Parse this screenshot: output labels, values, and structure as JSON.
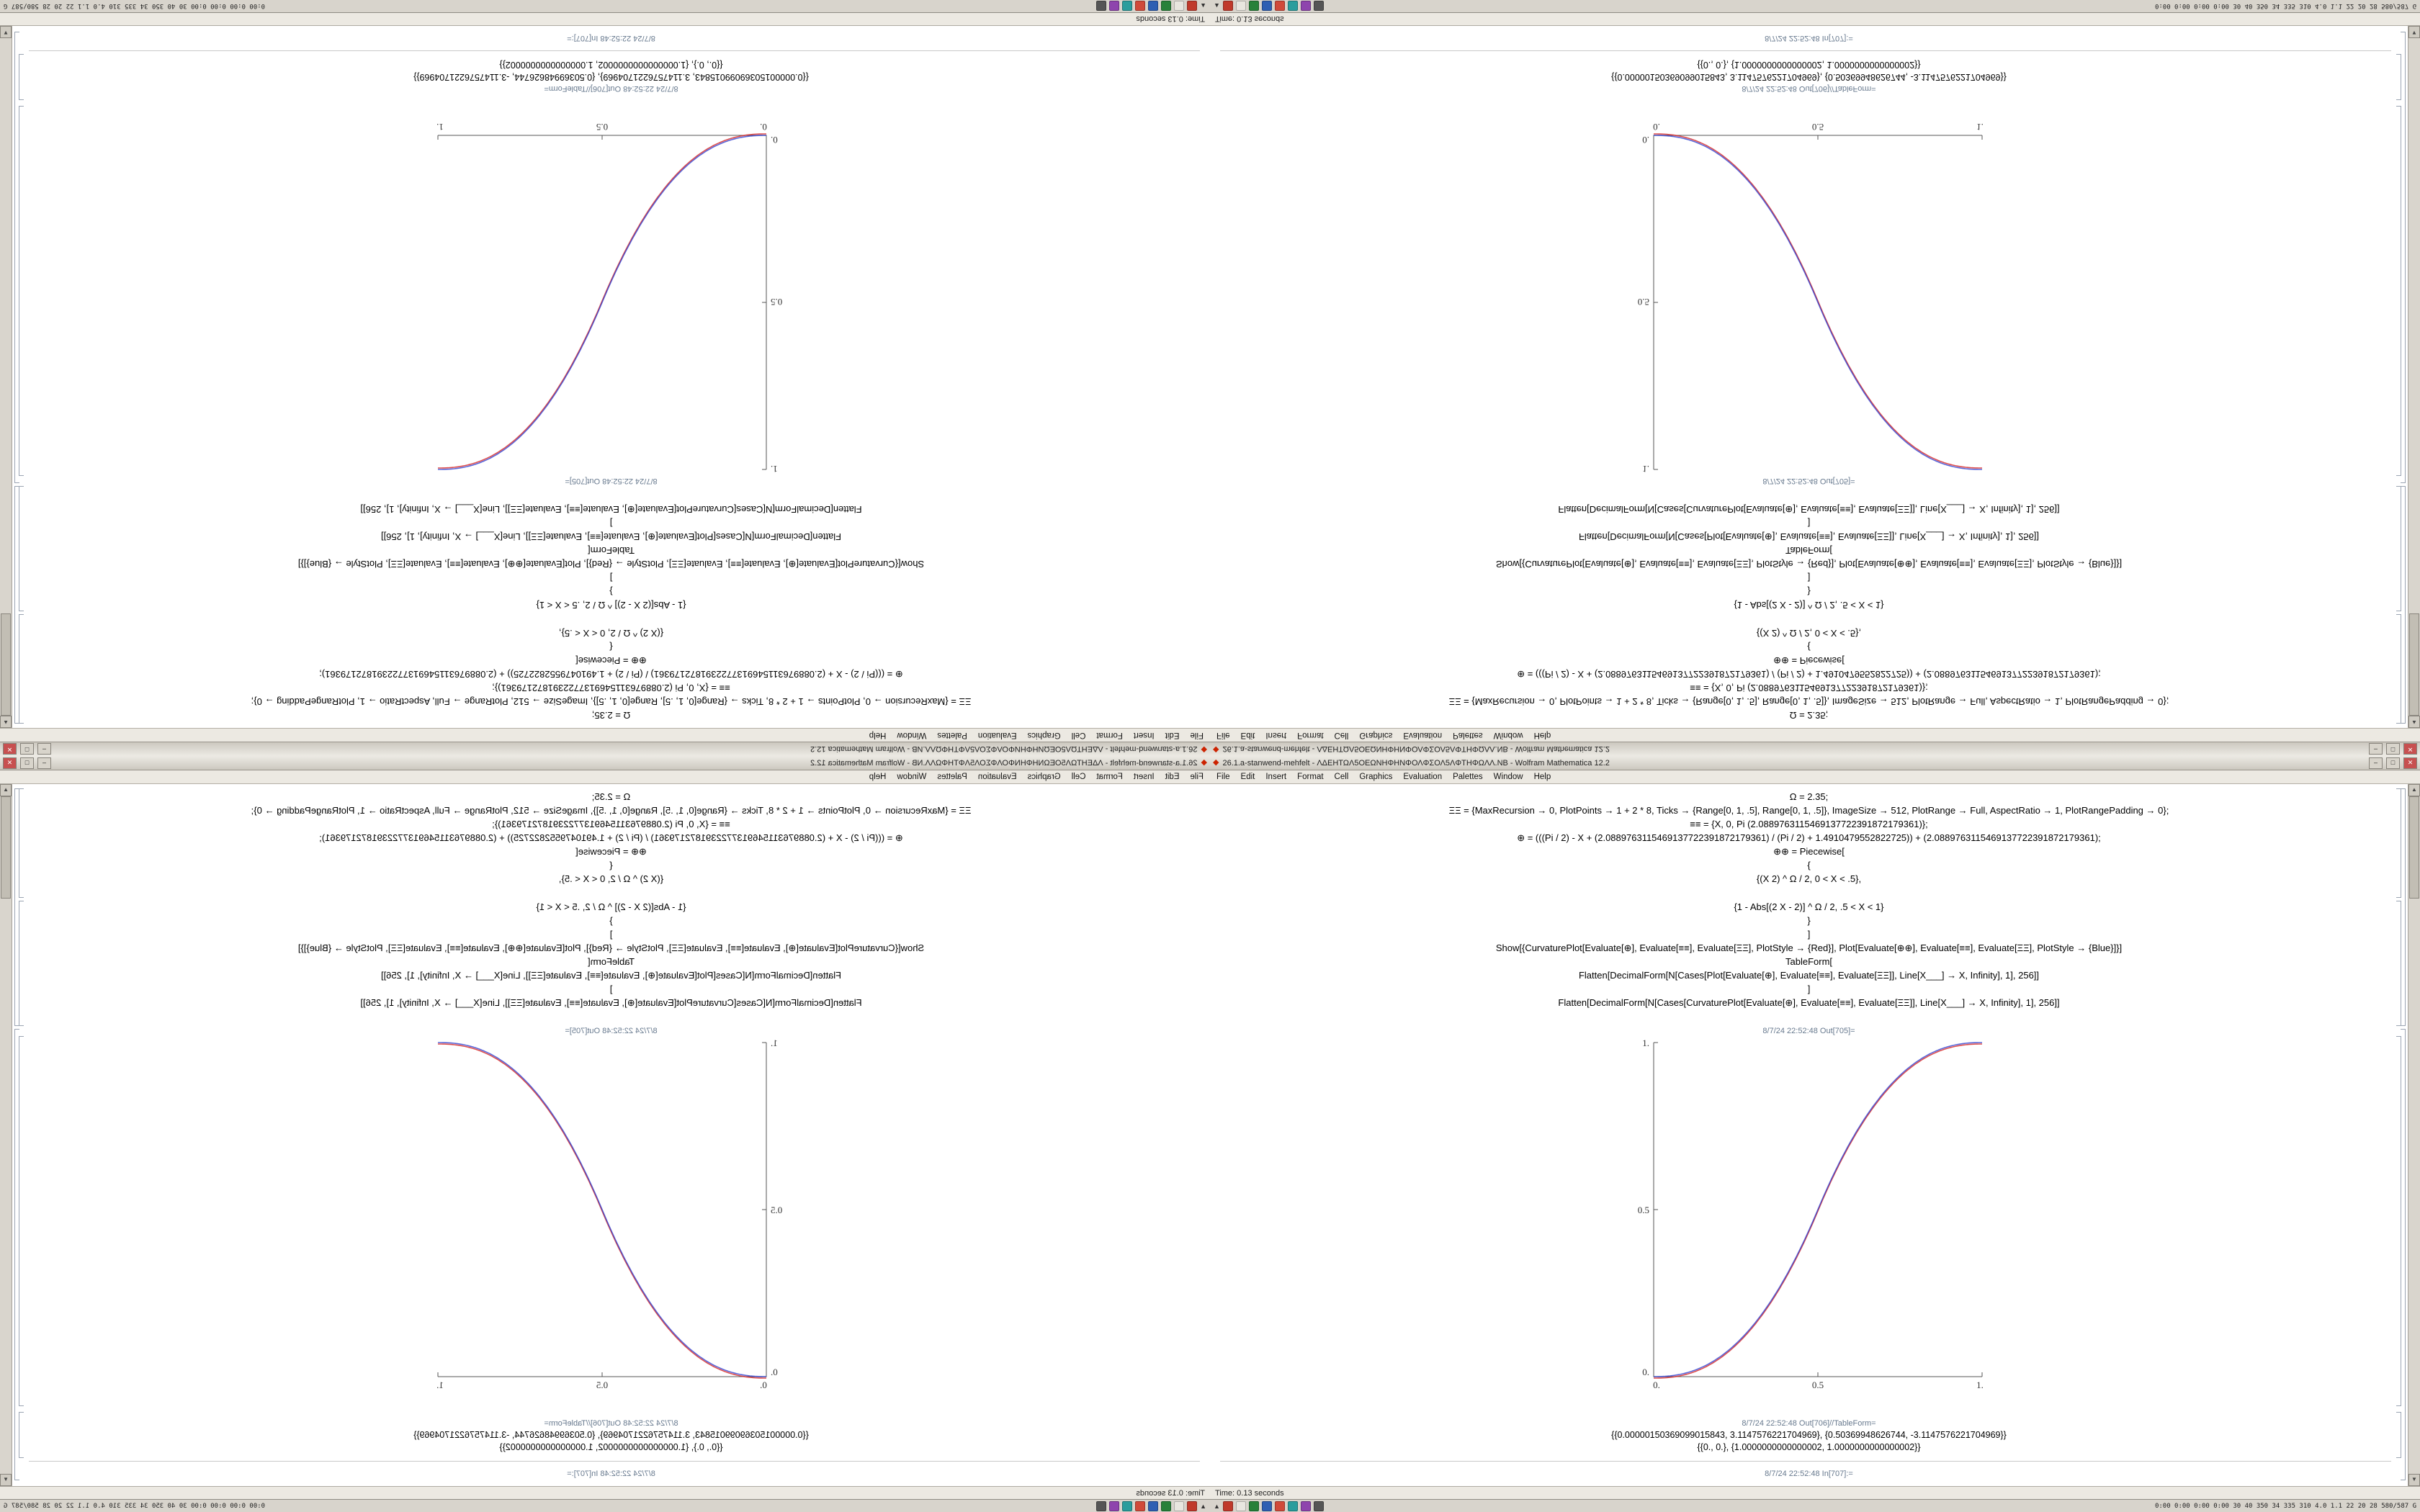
{
  "window": {
    "title": "26.1.a-stanwend-mehfelt - ΛΔΕΗΤΩΛ5ΟΕΩΝΗΦΗΝΦΟΛΦΣΟΛ5ΛΦΤΗΦΩΛΛ.NB - Wolfram Mathematica 12.2",
    "app_icon": "◆",
    "minimize_label": "–",
    "maximize_label": "□",
    "close_label": "✕"
  },
  "menu": {
    "items": [
      "File",
      "Edit",
      "Insert",
      "Format",
      "Cell",
      "Graphics",
      "Evaluation",
      "Palettes",
      "Window",
      "Help"
    ]
  },
  "notebook": {
    "code": [
      "Ω = 2.35;",
      "ΞΞ = {MaxRecursion → 0, PlotPoints → 1 + 2 * 8, Ticks → {Range[0, 1, .5], Range[0, 1, .5]}, ImageSize → 512, PlotRange → Full, AspectRatio → 1, PlotRangePadding → 0};",
      "≡≡ = {X, 0, Pi (2.0889763115469137722391872179361)};",
      "⊕ = (((Pi / 2) - X + (2.0889763115469137722391872179361) / (Pi / 2) + 1.4910479552822725)) + (2.0889763115469137722391872179361);",
      "⊕⊕ = Piecewise[",
      "{",
      "{(X 2) ^ Ω / 2, 0 < X < .5},",
      "{1 - Abs[(2 X - 2)] ^ Ω / 2, .5 < X < 1}",
      "}",
      "]",
      "Show[{CurvaturePlot[Evaluate[⊕], Evaluate[≡≡], Evaluate[ΞΞ], PlotStyle → {Red}], Plot[Evaluate[⊕⊕], Evaluate[≡≡], Evaluate[ΞΞ], PlotStyle → {Blue}]}]",
      "TableForm[",
      "Flatten[DecimalForm[N[Cases[Plot[Evaluate[⊕], Evaluate[≡≡], Evaluate[ΞΞ]], Line[X___] → X, Infinity], 1], 256]]",
      "]",
      "Flatten[DecimalForm[N[Cases[CurvaturePlot[Evaluate[⊕], Evaluate[≡≡], Evaluate[ΞΞ]], Line[X___] → X, Infinity], 1], 256]]"
    ],
    "out_label_1": "8/7/24 22:52:48 Out[705]=",
    "out_label_2": "8/7/24 22:52:48 Out[706]//TableForm=",
    "in_label_next": "8/7/24 22:52:48 In[707]:=",
    "results": [
      "{{0.00000150369099015843, 3.1147576221704969}, {0.50369948626744, -3.1147576221704969}}",
      "{{0., 0.}, {1.0000000000000002, 1.0000000000000002}}"
    ]
  },
  "chart_data": {
    "type": "line",
    "title": "",
    "xlabel": "",
    "ylabel": "",
    "omega": 2.35,
    "function": "f(x) = (2x)^Ω/2 for 0<x<0.5 ; 1-|2-2x|^Ω/2 for 0.5<x<1",
    "x_range": [
      0,
      1
    ],
    "y_range": [
      0,
      1
    ],
    "xticks": [
      "0.",
      "0.5",
      "1."
    ],
    "yticks": [
      "0.",
      "0.5",
      "1."
    ],
    "series": [
      {
        "name": "CurvaturePlot",
        "color": "#d42222"
      },
      {
        "name": "Plot",
        "color": "#2233cc"
      }
    ],
    "sample_points": {
      "x": [
        0,
        0.25,
        0.5,
        0.75,
        1
      ],
      "y": [
        0,
        0.098,
        0.5,
        0.902,
        1
      ]
    }
  },
  "status_bar": {
    "time": "Time: 0.13 seconds"
  },
  "taskbar": {
    "show_desktop": "▲",
    "icons": [
      "#c0392b",
      "#e8e6df",
      "#27813a",
      "#2e5fb3",
      "#d04a3a",
      "#2a9d9d",
      "#8e44ad",
      "#555555"
    ],
    "tray": "0:00 0:00 0:00 0:00  30 40  350 34 335 310  4.0 1.1  22 20 28  580/587 G"
  }
}
